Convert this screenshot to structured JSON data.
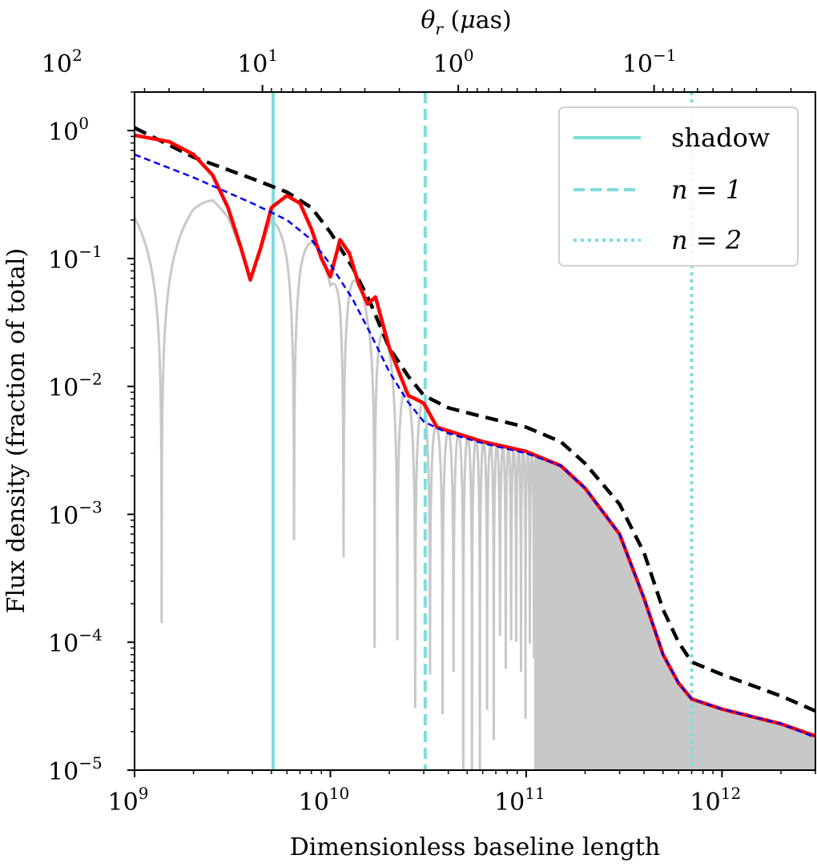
{
  "chart_data": {
    "type": "line",
    "title": "",
    "xlabel": "Dimensionless baseline length",
    "ylabel": "Flux density (fraction of total)",
    "top_xlabel": "θ_r (μas)",
    "xscale": "log",
    "yscale": "log",
    "xlim": [
      1000000000.0,
      3000000000000.0
    ],
    "ylim": [
      1e-05,
      2
    ],
    "x_ticks": [
      {
        "value": 1000000000.0,
        "base": "10",
        "exp": "9"
      },
      {
        "value": 10000000000.0,
        "base": "10",
        "exp": "10"
      },
      {
        "value": 100000000000.0,
        "base": "10",
        "exp": "11"
      },
      {
        "value": 1000000000000.0,
        "base": "10",
        "exp": "12"
      }
    ],
    "y_ticks": [
      {
        "value": 1e-05,
        "base": "10",
        "exp": "−5"
      },
      {
        "value": 0.0001,
        "base": "10",
        "exp": "−4"
      },
      {
        "value": 0.001,
        "base": "10",
        "exp": "−3"
      },
      {
        "value": 0.01,
        "base": "10",
        "exp": "−2"
      },
      {
        "value": 0.1,
        "base": "10",
        "exp": "−1"
      },
      {
        "value": 1,
        "base": "10",
        "exp": "0"
      }
    ],
    "top_ticks": [
      {
        "theta": 100,
        "base": "10",
        "exp": "2"
      },
      {
        "theta": 10,
        "base": "10",
        "exp": "1"
      },
      {
        "theta": 1,
        "base": "10",
        "exp": "0"
      },
      {
        "theta": 0.1,
        "base": "10",
        "exp": "−1"
      }
    ],
    "top_axis_conversion": "theta_uas = 4.5e10 / x",
    "series": [
      {
        "name": "envelope upper",
        "style": "black dashed",
        "color": "#000000",
        "x": [
          1000000000.0,
          2000000000.0,
          4000000000.0,
          6000000000.0,
          8000000000.0,
          10000000000.0,
          13000000000.0,
          16000000000.0,
          20000000000.0,
          25000000000.0,
          30000000000.0,
          40000000000.0,
          60000000000.0,
          100000000000.0,
          150000000000.0,
          200000000000.0,
          300000000000.0,
          400000000000.0,
          500000000000.0,
          600000000000.0,
          700000000000.0,
          1000000000000.0,
          2000000000000.0,
          3000000000000.0
        ],
        "y": [
          1.05,
          0.62,
          0.42,
          0.33,
          0.25,
          0.16,
          0.085,
          0.045,
          0.02,
          0.012,
          0.0085,
          0.0068,
          0.0058,
          0.0048,
          0.0037,
          0.0025,
          0.0012,
          0.0005,
          0.00018,
          0.0001,
          7e-05,
          5.6e-05,
          3.8e-05,
          2.9e-05
        ]
      },
      {
        "name": "model (blue dashed)",
        "style": "blue dashed",
        "color": "#0000ee",
        "x": [
          1000000000.0,
          2000000000.0,
          4000000000.0,
          6000000000.0,
          8000000000.0,
          10000000000.0,
          13000000000.0,
          16000000000.0,
          20000000000.0,
          25000000000.0,
          30000000000.0,
          40000000000.0,
          60000000000.0,
          100000000000.0,
          150000000000.0,
          200000000000.0,
          300000000000.0,
          400000000000.0,
          500000000000.0,
          600000000000.0,
          700000000000.0,
          1000000000000.0,
          2000000000000.0,
          3000000000000.0
        ],
        "y": [
          0.65,
          0.43,
          0.27,
          0.2,
          0.14,
          0.09,
          0.048,
          0.026,
          0.013,
          0.0075,
          0.0053,
          0.0043,
          0.0036,
          0.003,
          0.0024,
          0.0016,
          0.0007,
          0.00022,
          8e-05,
          4.8e-05,
          3.6e-05,
          3e-05,
          2.3e-05,
          1.8e-05
        ]
      },
      {
        "name": "envelope (red)",
        "style": "red solid",
        "color": "#ff0000",
        "x": [
          1000000000.0,
          1500000000.0,
          2000000000.0,
          2500000000.0,
          3000000000.0,
          3500000000.0,
          3900000000.0,
          4400000000.0,
          5000000000.0,
          6000000000.0,
          7000000000.0,
          8000000000.0,
          9000000000.0,
          10000000000.0,
          11200000000.0,
          12500000000.0,
          14000000000.0,
          15500000000.0,
          17000000000.0,
          20000000000.0,
          25000000000.0,
          30000000000.0,
          35000000000.0,
          40000000000.0,
          60000000000.0,
          100000000000.0,
          150000000000.0,
          200000000000.0,
          300000000000.0,
          400000000000.0,
          500000000000.0,
          600000000000.0,
          700000000000.0,
          1000000000000.0,
          2000000000000.0,
          3000000000000.0
        ],
        "y": [
          0.92,
          0.82,
          0.65,
          0.45,
          0.25,
          0.12,
          0.068,
          0.12,
          0.25,
          0.31,
          0.27,
          0.17,
          0.1,
          0.072,
          0.14,
          0.11,
          0.062,
          0.044,
          0.05,
          0.02,
          0.0085,
          0.0074,
          0.0048,
          0.0045,
          0.0037,
          0.0031,
          0.0024,
          0.0016,
          0.0007,
          0.00022,
          8e-05,
          4.8e-05,
          3.6e-05,
          3e-05,
          2.3e-05,
          1.85e-05
        ]
      },
      {
        "name": "visibility amplitude (gray)",
        "style": "gray solid oscillating",
        "color": "#c8c8c8",
        "first_null": 3950000000.0,
        "null_spacing": 5150000000.0
      }
    ],
    "vlines": [
      {
        "label": "shadow",
        "x": 5100000000.0,
        "style": "solid",
        "color": "#7fdcdc"
      },
      {
        "label": "n = 1",
        "x": 30500000000.0,
        "style": "dashed",
        "color": "#7fdcdc"
      },
      {
        "label": "n = 2",
        "x": 700000000000.0,
        "style": "dotted",
        "color": "#7fdcdc"
      }
    ],
    "legend": {
      "position": "top-right",
      "entries": [
        {
          "text": "shadow",
          "math": false,
          "style": "solid"
        },
        {
          "text": "n = 1",
          "math": true,
          "style": "dashed"
        },
        {
          "text": "n = 2",
          "math": true,
          "style": "dotted"
        }
      ]
    }
  }
}
